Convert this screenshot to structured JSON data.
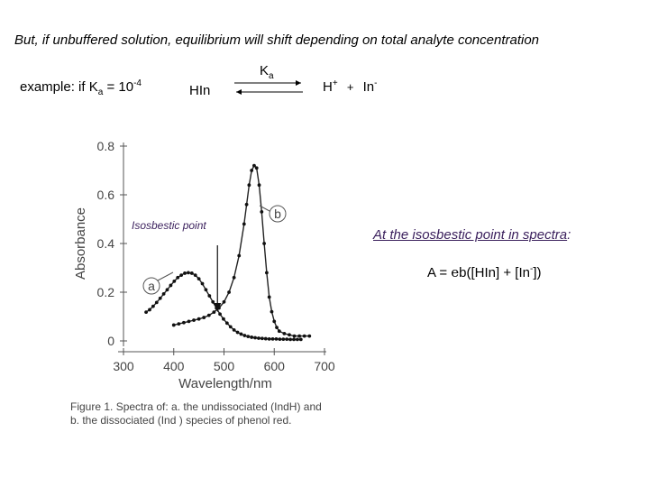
{
  "heading": "But, if unbuffered solution, equilibrium will shift depending on total analyte concentration",
  "example": {
    "prefix": "example:  if K",
    "sub": "a",
    "mid": " = 10",
    "exp": "-4",
    "reactant": "HIn",
    "arrow_label_main": "K",
    "arrow_label_sub": "a",
    "product_h": "H",
    "product_h_sup": "+",
    "plus": "+",
    "product_in": "In",
    "product_in_sup": "-"
  },
  "isosbestic_right": {
    "lead": "At the isosbestic point in spectra",
    "colon": ":"
  },
  "formula": {
    "lhs": "A = ",
    "eps": "e",
    "rest1": "b([HIn] + [In",
    "sup": "-",
    "rest2": "])"
  },
  "figure_caption": {
    "line1": "Figure 1. Spectra of: a. the undissociated (IndH) and",
    "line2": "b. the dissociated (Ind ) species of phenol red."
  },
  "chart_data": {
    "type": "scatter",
    "xlabel": "Wavelength/nm",
    "ylabel": "Absorbance",
    "xlim": [
      300,
      700
    ],
    "ylim": [
      0,
      0.8
    ],
    "x_ticks": [
      300,
      400,
      500,
      600,
      700
    ],
    "y_ticks": [
      0,
      0.2,
      0.4,
      0.6,
      0.8
    ],
    "x_tick_labels": [
      "300",
      "400",
      "500",
      "600",
      "700"
    ],
    "y_tick_labels": [
      "0",
      "0.2",
      "0.4",
      "0.6",
      "0.8"
    ],
    "annotations": {
      "isosbestic_label": "Isosbestic point",
      "curve_a_label": "a",
      "curve_b_label": "b",
      "isosbestic_x": 487
    },
    "series": [
      {
        "key": "a",
        "x": [
          345,
          352,
          359,
          366,
          373,
          380,
          387,
          394,
          401,
          408,
          415,
          422,
          429,
          436,
          443,
          450,
          457,
          464,
          471,
          478,
          485,
          492,
          499,
          506,
          513,
          520,
          527,
          534,
          541,
          548,
          555,
          562,
          569,
          576,
          583,
          590,
          597,
          604,
          611,
          618,
          625,
          632,
          639,
          646,
          653
        ],
        "y": [
          0.118,
          0.128,
          0.142,
          0.158,
          0.175,
          0.193,
          0.21,
          0.228,
          0.245,
          0.26,
          0.27,
          0.278,
          0.28,
          0.278,
          0.27,
          0.255,
          0.235,
          0.21,
          0.185,
          0.16,
          0.135,
          0.11,
          0.09,
          0.073,
          0.058,
          0.045,
          0.035,
          0.028,
          0.022,
          0.018,
          0.015,
          0.013,
          0.011,
          0.01,
          0.009,
          0.008,
          0.008,
          0.008,
          0.007,
          0.007,
          0.007,
          0.006,
          0.006,
          0.006,
          0.006
        ]
      },
      {
        "key": "b",
        "x": [
          400,
          410,
          420,
          430,
          440,
          450,
          460,
          470,
          480,
          490,
          500,
          510,
          520,
          530,
          540,
          545,
          550,
          555,
          560,
          565,
          570,
          575,
          580,
          585,
          590,
          595,
          600,
          605,
          610,
          620,
          630,
          640,
          650,
          660,
          670
        ],
        "y": [
          0.065,
          0.07,
          0.075,
          0.08,
          0.085,
          0.09,
          0.096,
          0.105,
          0.118,
          0.135,
          0.16,
          0.2,
          0.26,
          0.35,
          0.48,
          0.56,
          0.64,
          0.7,
          0.72,
          0.71,
          0.64,
          0.53,
          0.4,
          0.28,
          0.18,
          0.12,
          0.08,
          0.055,
          0.04,
          0.03,
          0.025,
          0.02,
          0.02,
          0.02,
          0.02
        ]
      }
    ]
  }
}
